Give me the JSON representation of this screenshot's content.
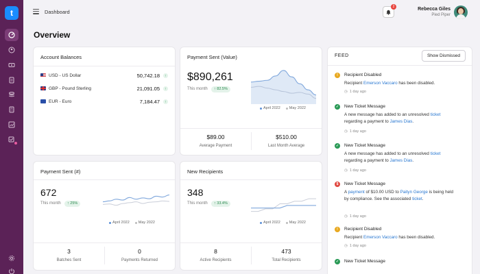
{
  "header": {
    "breadcrumb": "Dashboard",
    "notifications_count": "2",
    "user_name": "Rebecca Giles",
    "user_org": "Pied Piper"
  },
  "logo": "t",
  "page_title": "Overview",
  "account_balances": {
    "title": "Account Balances",
    "rows": [
      {
        "currency": "USD - US Dollar",
        "value": "50,742.18"
      },
      {
        "currency": "GBP - Pound Sterling",
        "value": "21,091.05"
      },
      {
        "currency": "EUR - Euro",
        "value": "7,184.47"
      }
    ]
  },
  "payment_sent_value": {
    "title": "Payment Sent (Value)",
    "amount": "$890,261",
    "this_month": "This month",
    "change": "↑ 82.5%",
    "legend": [
      "April 2022",
      "May 2022"
    ],
    "stats": [
      {
        "value": "$89.00",
        "label": "Average Payment"
      },
      {
        "value": "$510.00",
        "label": "Last Month Average"
      }
    ]
  },
  "payment_sent_count": {
    "title": "Payment Sent (#)",
    "amount": "672",
    "this_month": "This month",
    "change": "↑ 25%",
    "legend": [
      "April 2022",
      "May 2022"
    ],
    "stats": [
      {
        "value": "3",
        "label": "Batches Sent"
      },
      {
        "value": "0",
        "label": "Payments Returned"
      }
    ]
  },
  "new_recipients": {
    "title": "New Recipients",
    "amount": "348",
    "this_month": "This month",
    "change": "↑ 33.4%",
    "legend": [
      "April 2022",
      "May 2022"
    ],
    "stats": [
      {
        "value": "8",
        "label": "Active Recipients"
      },
      {
        "value": "473",
        "label": "Total Recipients"
      }
    ]
  },
  "feed": {
    "title": "FEED",
    "dismiss_label": "Show Dismissed",
    "items": [
      {
        "type": "warning",
        "title": "Recipient Disabled",
        "time": "1 day ago"
      },
      {
        "type": "success",
        "title": "New Ticket Message",
        "time": "1 day ago"
      },
      {
        "type": "success",
        "title": "New Ticket Message",
        "time": "1 day ago"
      },
      {
        "type": "error",
        "title": "New Ticket Message",
        "time": "1 day ago"
      },
      {
        "type": "warning",
        "title": "Recipient Disabled",
        "time": "1 day ago"
      },
      {
        "type": "success",
        "title": "New Ticket Message",
        "time": ""
      }
    ],
    "texts": {
      "recipient": "Recipient",
      "emerson": "Emerson Vaccaro",
      "has_been_disabled": "has been disabled.",
      "ticket_msg_a": "A new message has added to an unresolved",
      "ticket": "ticket",
      "regarding_payment_to": "regarding a payment to",
      "james": "James Dias",
      "a": "A",
      "payment": "payment",
      "of_usd_to": "of $10.00 USD to",
      "paityn": "Paityn George",
      "is": "is",
      "held_by_compliance": "being held by compliance. See the associated",
      "period": "."
    }
  },
  "colors": {
    "sidebar": "#5b2257",
    "accent_blue": "#1a8cff",
    "april_line": "#7fa7dc",
    "may_line": "#c9cdd8",
    "positive": "#2a9a56"
  },
  "chart_data": [
    {
      "type": "area",
      "title": "Payment Sent (Value)",
      "series": [
        {
          "name": "April 2022",
          "values": [
            48,
            50,
            52,
            62,
            75,
            60,
            44,
            30,
            18
          ]
        },
        {
          "name": "May 2022",
          "values": [
            36,
            38,
            34,
            30,
            26,
            22,
            24,
            20,
            10
          ]
        }
      ]
    },
    {
      "type": "line",
      "title": "Payment Sent (#)",
      "series": [
        {
          "name": "April 2022",
          "values": [
            34,
            36,
            40,
            38,
            44,
            40,
            43,
            41,
            47,
            45,
            50
          ]
        },
        {
          "name": "May 2022",
          "values": [
            28,
            29,
            26,
            30,
            32,
            34,
            30,
            33,
            34,
            36,
            35
          ]
        }
      ]
    },
    {
      "type": "line",
      "title": "New Recipients",
      "series": [
        {
          "name": "April 2022",
          "values": [
            20,
            20,
            20,
            20,
            20,
            26,
            26,
            26,
            26,
            26
          ]
        },
        {
          "name": "May 2022",
          "values": [
            12,
            12,
            18,
            18,
            30,
            30,
            36,
            36,
            42,
            42
          ]
        }
      ]
    }
  ]
}
